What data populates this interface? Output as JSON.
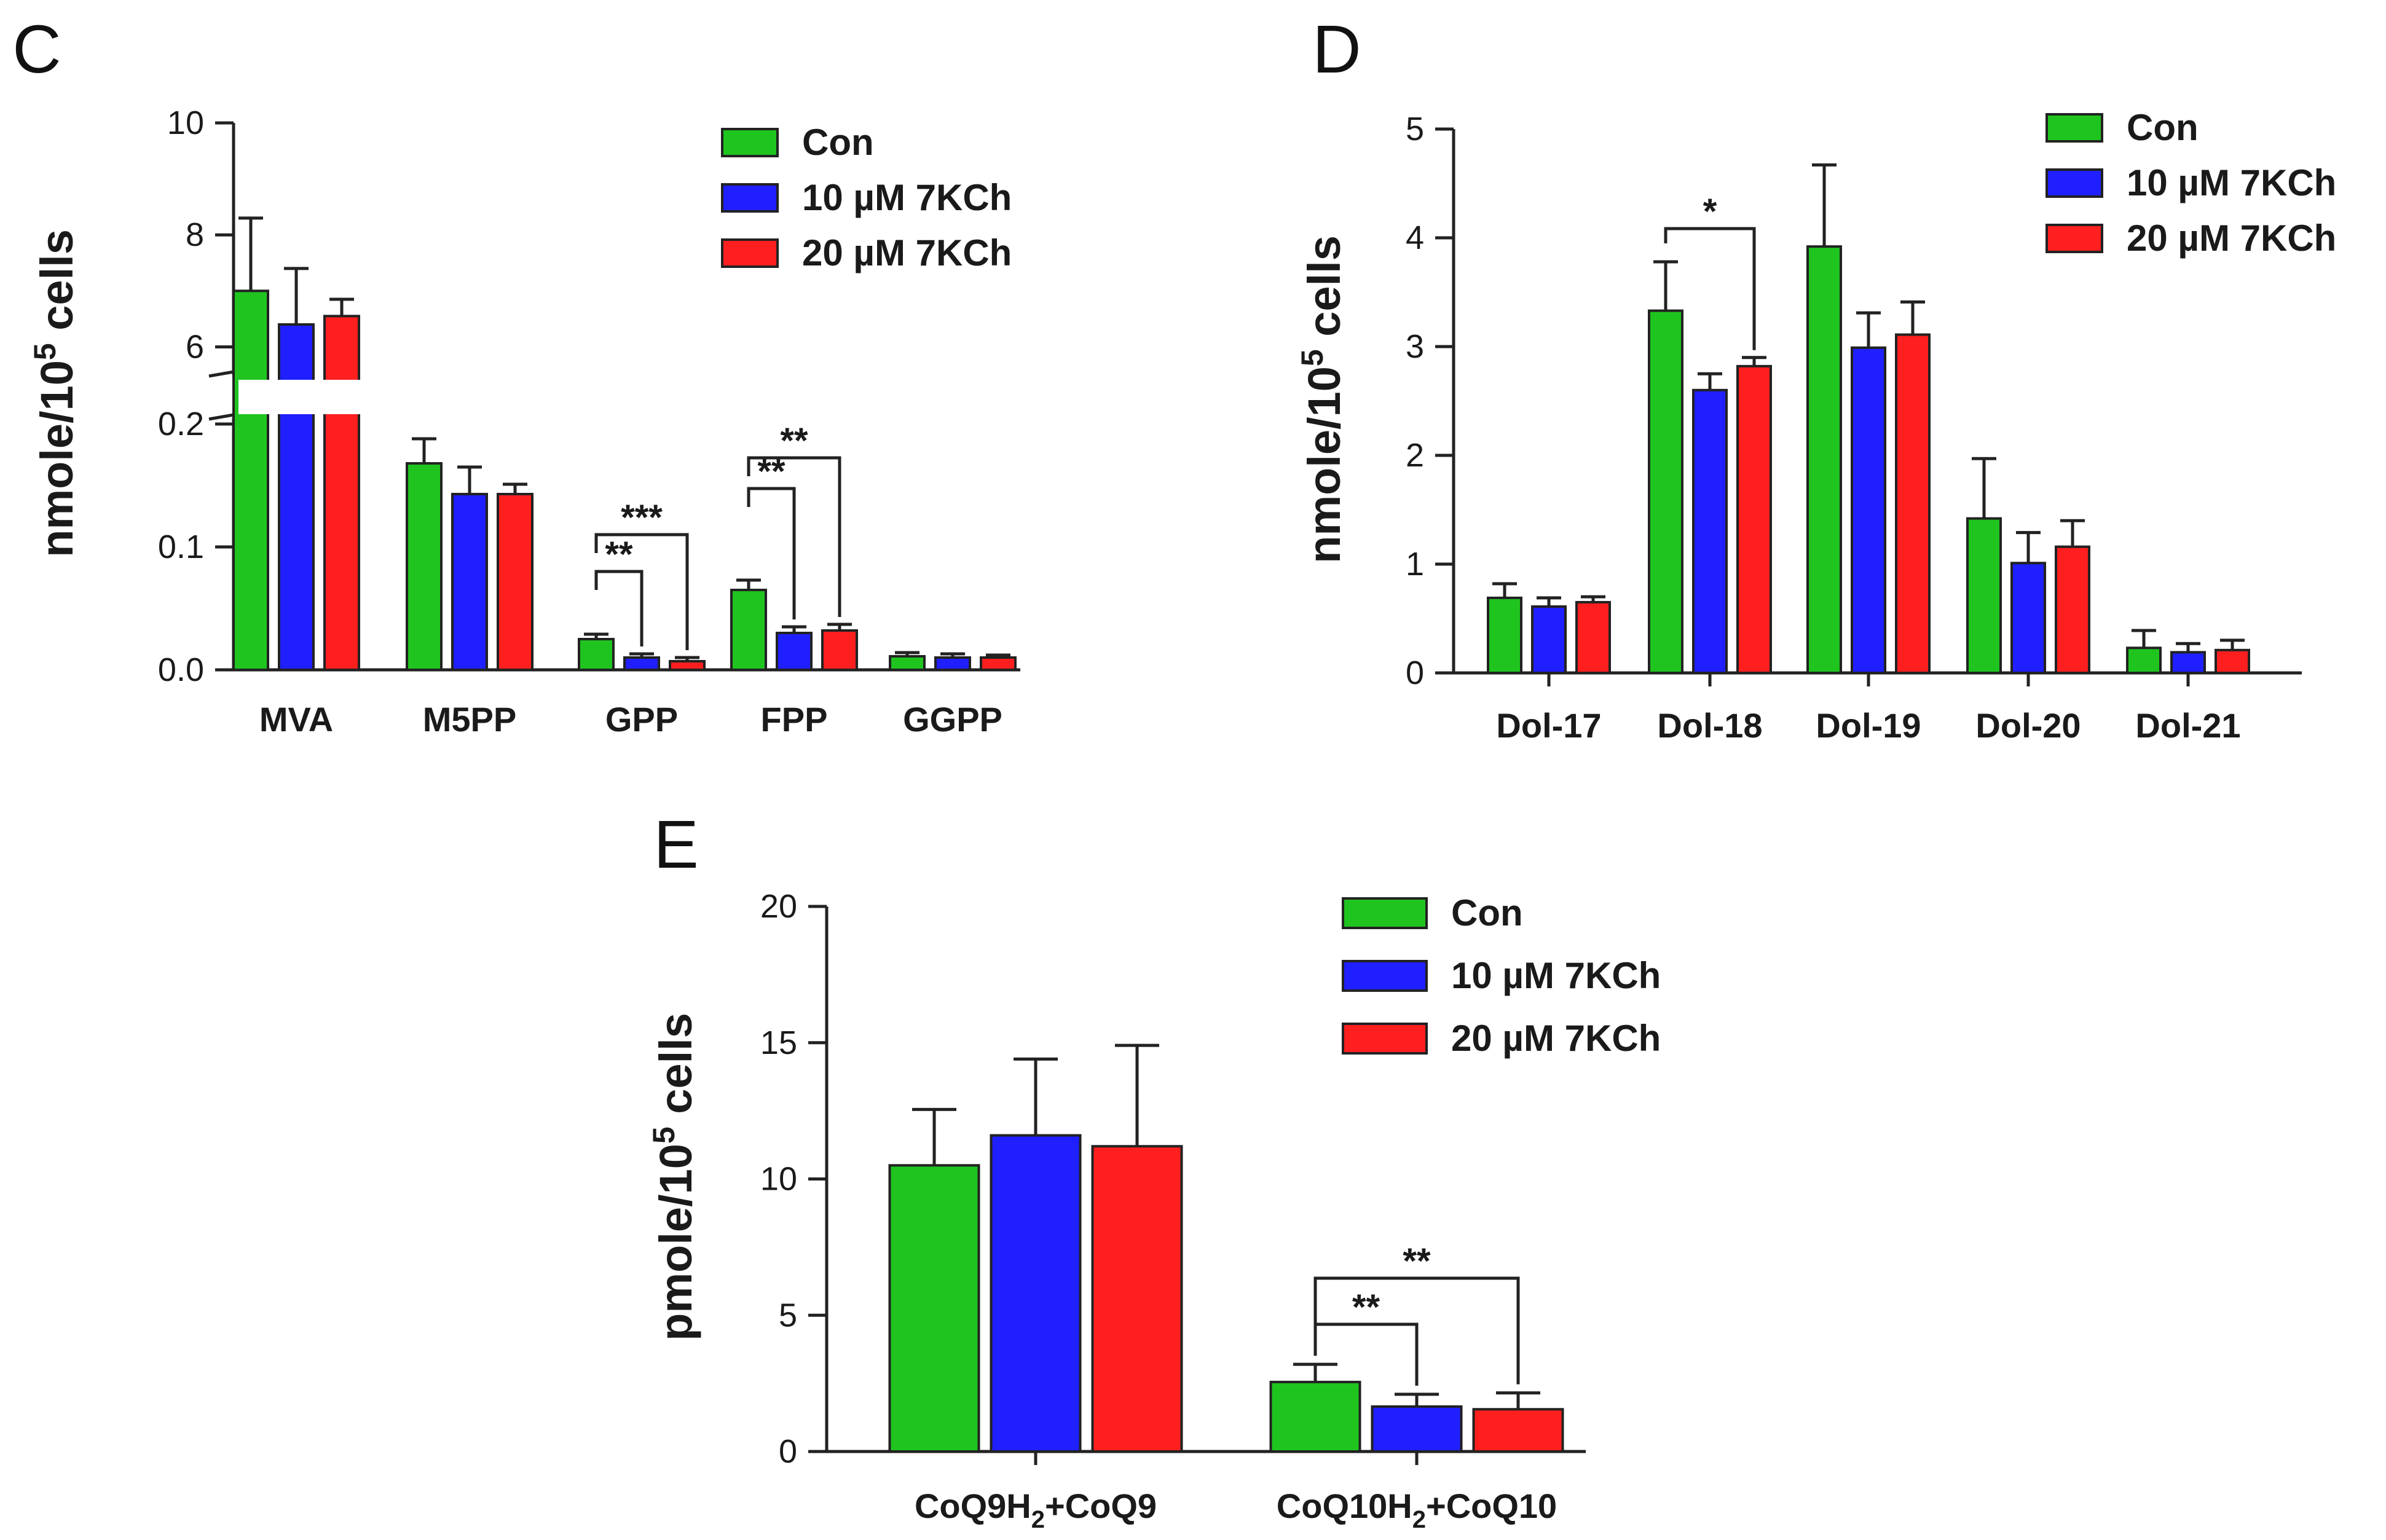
{
  "colors": {
    "con": "#1fc41f",
    "k10": "#1f1fff",
    "k20": "#ff1f1f"
  },
  "legend": [
    "Con",
    "10 µM 7KCh",
    "20 µM 7KCh"
  ],
  "chart_data": [
    {
      "panel": "C",
      "type": "bar",
      "ylabel": "nmole/10",
      "ylabel_sup": "5",
      "ylabel_tail": " cells",
      "axis_break": {
        "lower": [
          0,
          0.2
        ],
        "upper": [
          5.5,
          10
        ]
      },
      "y_ticks_lower": [
        "0.0",
        "0.1",
        "0.2"
      ],
      "y_ticks_upper": [
        "6",
        "8",
        "10"
      ],
      "categories": [
        "MVA",
        "M5PP",
        "GPP",
        "FPP",
        "GGPP"
      ],
      "series": [
        {
          "name": "Con",
          "values": [
            7.0,
            0.168,
            0.025,
            0.065,
            0.011
          ],
          "errors": [
            1.3,
            0.02,
            0.004,
            0.008,
            0.003
          ]
        },
        {
          "name": "10 µM 7KCh",
          "values": [
            6.4,
            0.143,
            0.01,
            0.03,
            0.01
          ],
          "errors": [
            1.0,
            0.022,
            0.003,
            0.005,
            0.003
          ]
        },
        {
          "name": "20 µM 7KCh",
          "values": [
            6.55,
            0.143,
            0.007,
            0.032,
            0.01
          ],
          "errors": [
            0.3,
            0.008,
            0.003,
            0.005,
            0.002
          ]
        }
      ],
      "significance": [
        {
          "category": "GPP",
          "from": 0,
          "to": 1,
          "label": "**"
        },
        {
          "category": "GPP",
          "from": 0,
          "to": 2,
          "label": "***"
        },
        {
          "category": "FPP",
          "from": 0,
          "to": 1,
          "label": "**"
        },
        {
          "category": "FPP",
          "from": 0,
          "to": 2,
          "label": "**"
        }
      ]
    },
    {
      "panel": "D",
      "type": "bar",
      "ylabel": "nmole/10",
      "ylabel_sup": "5",
      "ylabel_tail": " cells",
      "ylim": [
        0,
        5
      ],
      "y_ticks": [
        "0",
        "1",
        "2",
        "3",
        "4",
        "5"
      ],
      "categories": [
        "Dol-17",
        "Dol-18",
        "Dol-19",
        "Dol-20",
        "Dol-21"
      ],
      "series": [
        {
          "name": "Con",
          "values": [
            0.69,
            3.33,
            3.92,
            1.42,
            0.23
          ],
          "errors": [
            0.13,
            0.45,
            0.75,
            0.55,
            0.16
          ]
        },
        {
          "name": "10 µM 7KCh",
          "values": [
            0.61,
            2.6,
            2.99,
            1.01,
            0.19
          ],
          "errors": [
            0.08,
            0.15,
            0.32,
            0.28,
            0.08
          ]
        },
        {
          "name": "20 µM 7KCh",
          "values": [
            0.65,
            2.82,
            3.11,
            1.16,
            0.21
          ],
          "errors": [
            0.05,
            0.08,
            0.3,
            0.24,
            0.09
          ]
        }
      ],
      "significance": [
        {
          "category": "Dol-18",
          "from": 0,
          "to": 2,
          "label": "*"
        }
      ]
    },
    {
      "panel": "E",
      "type": "bar",
      "ylabel": "pmole/10",
      "ylabel_sup": "5",
      "ylabel_tail": " cells",
      "ylim": [
        0,
        20
      ],
      "y_ticks": [
        "0",
        "5",
        "10",
        "15",
        "20"
      ],
      "categories": [
        "CoQ9H",
        "CoQ10H"
      ],
      "category_sub": [
        "2",
        "2"
      ],
      "category_tail": [
        "+CoQ9",
        "+CoQ10"
      ],
      "series": [
        {
          "name": "Con",
          "values": [
            10.5,
            2.55
          ],
          "errors": [
            2.05,
            0.65
          ]
        },
        {
          "name": "10 µM 7KCh",
          "values": [
            11.6,
            1.65
          ],
          "errors": [
            2.8,
            0.45
          ]
        },
        {
          "name": "20 µM 7KCh",
          "values": [
            11.2,
            1.55
          ],
          "errors": [
            3.7,
            0.6
          ]
        }
      ],
      "significance": [
        {
          "category": "CoQ10H",
          "from": 0,
          "to": 1,
          "label": "**"
        },
        {
          "category": "CoQ10H",
          "from": 0,
          "to": 2,
          "label": "**"
        }
      ]
    }
  ]
}
